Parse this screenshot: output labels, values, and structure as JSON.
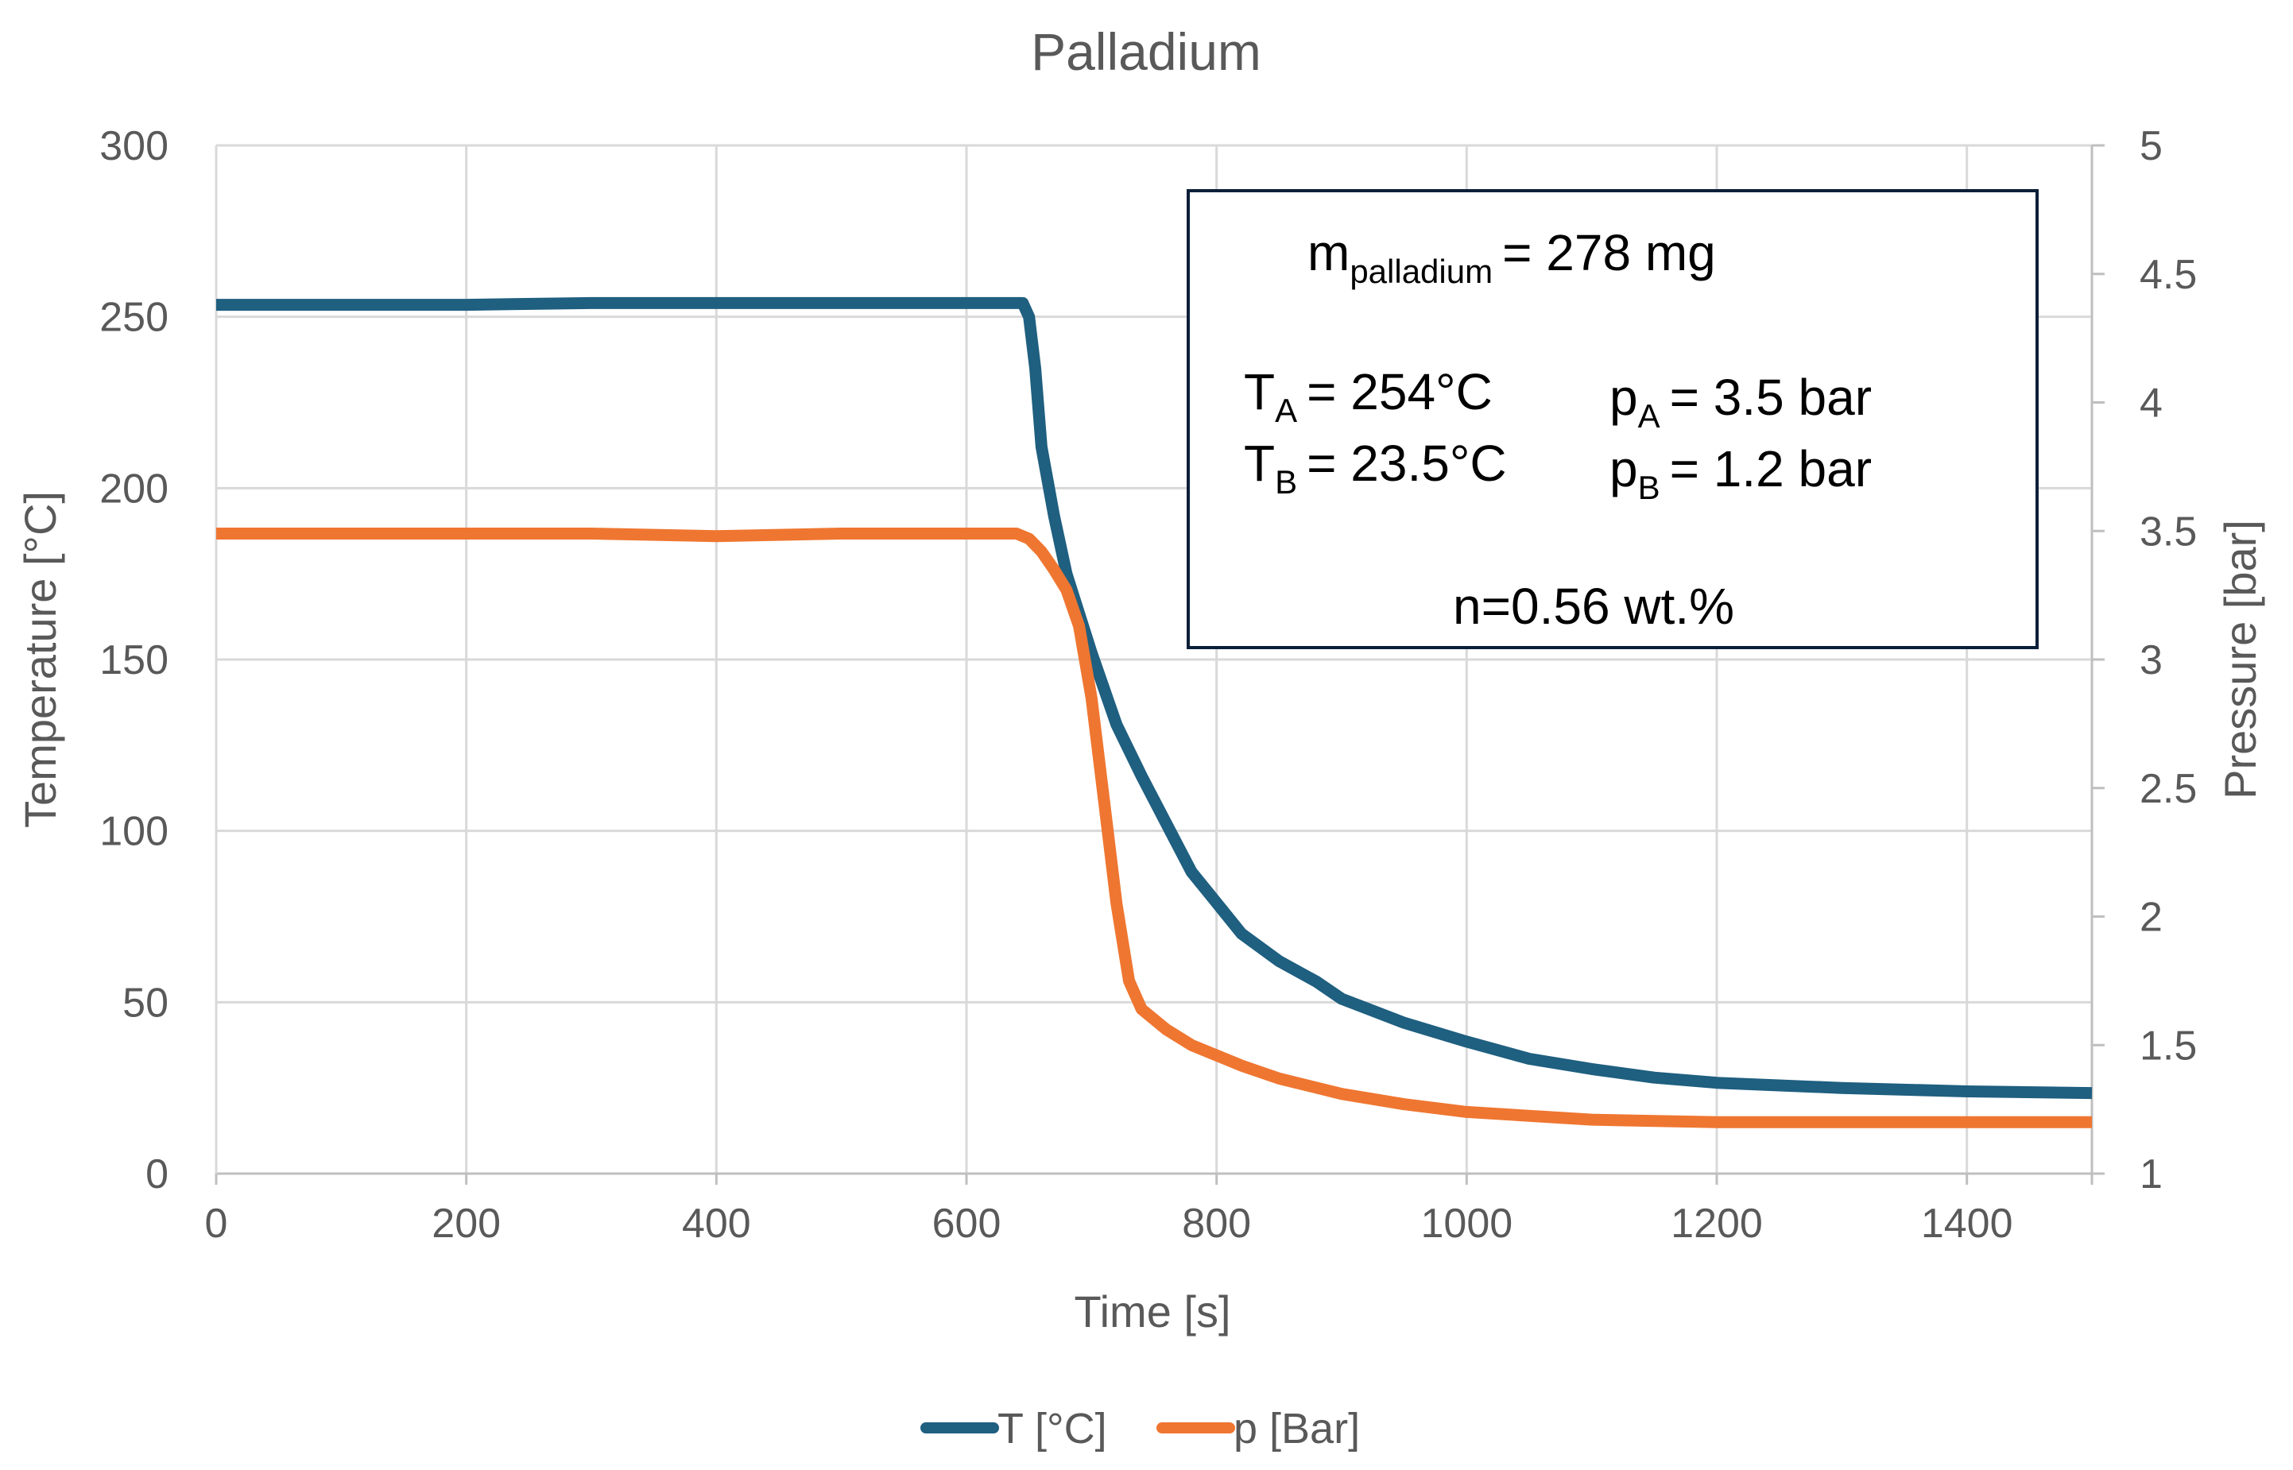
{
  "chart_data": {
    "type": "line",
    "title": "Palladium",
    "xlabel": "Time [s]",
    "ylabel": "Temperature [°C]",
    "y2label": "Pressure [bar]",
    "xlim": [
      0,
      1500
    ],
    "ylim": [
      0,
      300
    ],
    "y2lim": [
      1,
      5
    ],
    "xticks": [
      "0",
      "200",
      "400",
      "600",
      "800",
      "1000",
      "1200",
      "1400"
    ],
    "xtick_values": [
      0,
      200,
      400,
      600,
      800,
      1000,
      1200,
      1400
    ],
    "yticks": [
      "0",
      "50",
      "100",
      "150",
      "200",
      "250",
      "300"
    ],
    "ytick_values": [
      0,
      50,
      100,
      150,
      200,
      250,
      300
    ],
    "y2ticks": [
      "1",
      "1.5",
      "2",
      "2.5",
      "3",
      "3.5",
      "4",
      "4.5",
      "5"
    ],
    "y2tick_values": [
      1,
      1.5,
      2,
      2.5,
      3,
      3.5,
      4,
      4.5,
      5
    ],
    "grid": true,
    "legend_position": "bottom",
    "series": [
      {
        "name": "T [°C]",
        "axis": "left",
        "color": "#1f5f80",
        "x": [
          0,
          100,
          200,
          300,
          400,
          500,
          600,
          645,
          650,
          655,
          660,
          670,
          680,
          700,
          720,
          740,
          760,
          780,
          800,
          820,
          850,
          880,
          900,
          950,
          1000,
          1050,
          1100,
          1150,
          1200,
          1300,
          1400,
          1500
        ],
        "values": [
          253.5,
          253.5,
          253.5,
          254,
          254,
          254,
          254,
          254,
          250,
          235,
          212,
          192,
          175,
          152,
          131,
          116,
          102,
          88,
          79,
          70,
          62,
          56,
          51,
          44,
          38.5,
          33.5,
          30.5,
          28,
          26.5,
          25,
          24,
          23.5
        ]
      },
      {
        "name": "p [Bar]",
        "axis": "right",
        "color": "#ef7631",
        "x": [
          0,
          100,
          200,
          300,
          400,
          500,
          600,
          640,
          650,
          660,
          670,
          680,
          690,
          700,
          710,
          720,
          730,
          740,
          760,
          780,
          800,
          820,
          850,
          900,
          950,
          1000,
          1100,
          1200,
          1300,
          1400,
          1500
        ],
        "values": [
          3.49,
          3.49,
          3.49,
          3.49,
          3.48,
          3.49,
          3.49,
          3.49,
          3.47,
          3.42,
          3.35,
          3.27,
          3.13,
          2.85,
          2.45,
          2.05,
          1.75,
          1.64,
          1.56,
          1.5,
          1.46,
          1.42,
          1.37,
          1.31,
          1.27,
          1.24,
          1.21,
          1.2,
          1.2,
          1.2,
          1.2
        ]
      }
    ],
    "annotation": {
      "mass_var": "m",
      "mass_sub": "palladium",
      "mass_val": "= 278 mg",
      "ta_var": "T",
      "ta_sub": "A",
      "ta_val": "= 254°C",
      "tb_var": "T",
      "tb_sub": "B",
      "tb_val": "= 23.5°C",
      "pa_var": "p",
      "pa_sub": "A",
      "pa_val": "= 3.5 bar",
      "pb_var": "p",
      "pb_sub": "B",
      "pb_val": "= 1.2 bar",
      "n_text": "n=0.56 wt.%"
    }
  }
}
